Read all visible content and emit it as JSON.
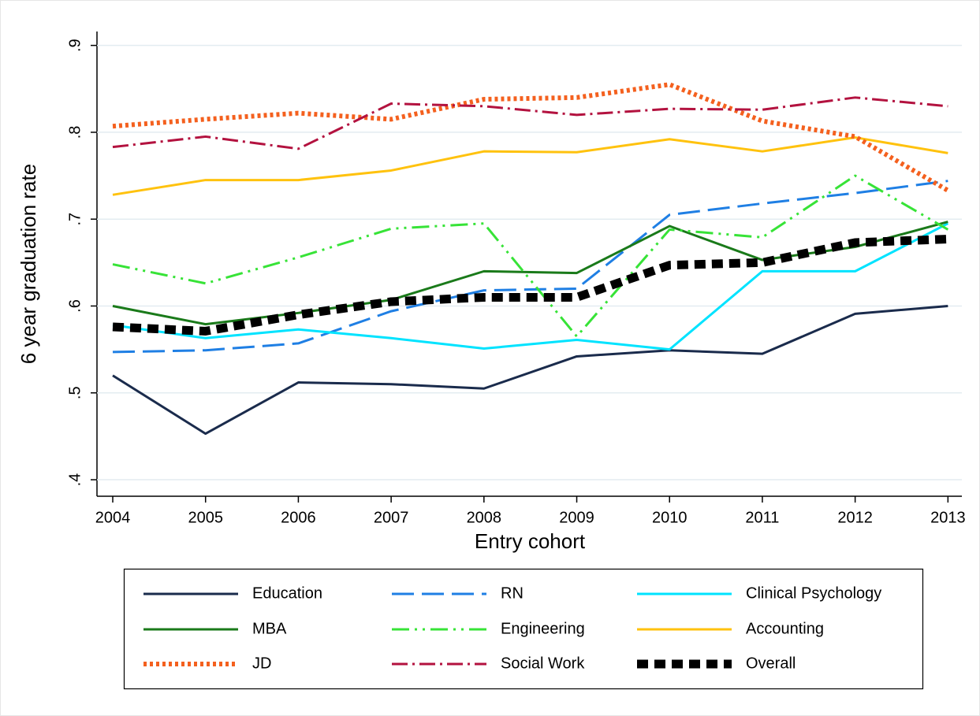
{
  "chart_data": {
    "type": "line",
    "x": [
      2004,
      2005,
      2006,
      2007,
      2008,
      2009,
      2010,
      2011,
      2012,
      2013
    ],
    "xlim": [
      2003.83,
      2013.15
    ],
    "xticks": [
      2004,
      2005,
      2006,
      2007,
      2008,
      2009,
      2010,
      2011,
      2012,
      2013
    ],
    "ylim": [
      0.381,
      0.916
    ],
    "yticks": [
      {
        "value": 0.4,
        "label": ".4"
      },
      {
        "value": 0.5,
        "label": ".5"
      },
      {
        "value": 0.6,
        "label": ".6"
      },
      {
        "value": 0.7,
        "label": ".7"
      },
      {
        "value": 0.8,
        "label": ".8"
      },
      {
        "value": 0.9,
        "label": ".9"
      }
    ],
    "xlabel": "Entry cohort",
    "ylabel": "6 year graduation rate",
    "grid": true,
    "legend": "bottom",
    "series": [
      {
        "name": "Education",
        "color": "#1a2b4c",
        "dash": "solid",
        "values": [
          0.52,
          0.453,
          0.512,
          0.51,
          0.505,
          0.542,
          0.549,
          0.545,
          0.591,
          0.6
        ]
      },
      {
        "name": "RN",
        "color": "#1f7fe4",
        "dash": "longdash",
        "values": [
          0.547,
          0.549,
          0.557,
          0.594,
          0.618,
          0.62,
          0.705,
          0.718,
          0.73,
          0.744
        ]
      },
      {
        "name": "Clinical Psychology",
        "color": "#00e3ff",
        "dash": "solid",
        "values": [
          0.578,
          0.563,
          0.573,
          0.563,
          0.551,
          0.561,
          0.55,
          0.64,
          0.64,
          0.695
        ]
      },
      {
        "name": "MBA",
        "color": "#1a7a1a",
        "dash": "solid",
        "values": [
          0.6,
          0.579,
          0.592,
          0.607,
          0.64,
          0.638,
          0.692,
          0.653,
          0.668,
          0.697
        ]
      },
      {
        "name": "Engineering",
        "color": "#37e337",
        "dash": "dashdotdot",
        "values": [
          0.648,
          0.626,
          0.656,
          0.689,
          0.695,
          0.565,
          0.688,
          0.679,
          0.75,
          0.688
        ]
      },
      {
        "name": "Accounting",
        "color": "#ffc20e",
        "dash": "solid",
        "values": [
          0.728,
          0.745,
          0.745,
          0.756,
          0.778,
          0.777,
          0.792,
          0.778,
          0.794,
          0.776
        ]
      },
      {
        "name": "JD",
        "color": "#f4601e",
        "dash": "dot",
        "values": [
          0.807,
          0.815,
          0.822,
          0.815,
          0.838,
          0.84,
          0.855,
          0.813,
          0.795,
          0.733
        ]
      },
      {
        "name": "Social Work",
        "color": "#b3123f",
        "dash": "dashdot",
        "values": [
          0.783,
          0.795,
          0.781,
          0.833,
          0.83,
          0.82,
          0.827,
          0.826,
          0.84,
          0.83
        ]
      },
      {
        "name": "Overall",
        "color": "#000000",
        "dash": "heavydash",
        "values": [
          0.576,
          0.571,
          0.59,
          0.605,
          0.61,
          0.61,
          0.647,
          0.65,
          0.673,
          0.677
        ]
      }
    ]
  }
}
